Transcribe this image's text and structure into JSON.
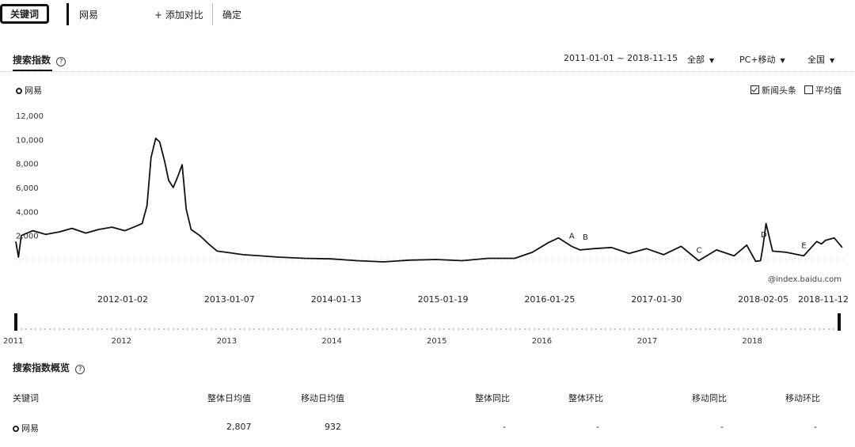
{
  "topbar": {
    "keyword_button": "关键词",
    "keyword": "网易",
    "add_compare": "+ 添加对比",
    "confirm": "确定"
  },
  "search_index": {
    "title": "搜索指数",
    "help_icon": "help-circle-icon",
    "date_range": "2011-01-01 ~ 2018-11-15",
    "scope": "全部",
    "device": "PC+移动",
    "region": "全国",
    "legend_name": "网易",
    "news_headlines_label": "新闻头条",
    "news_headlines_checked": true,
    "average_label": "平均值",
    "average_checked": false,
    "watermark": "@index.baidu.com"
  },
  "chart_data": {
    "type": "line",
    "title": "",
    "xlabel": "",
    "ylabel": "",
    "ylim": [
      0,
      12000
    ],
    "y_ticks": [
      "12,000",
      "10,000",
      "8,000",
      "6,000",
      "4,000",
      "2,000"
    ],
    "x_ticks": [
      "2012-01-02",
      "2013-01-07",
      "2014-01-13",
      "2015-01-19",
      "2016-01-25",
      "2017-01-30",
      "2018-02-05",
      "2018-11-12"
    ],
    "series": [
      {
        "name": "网易",
        "x": [
          "2011-01-01",
          "2011-01-10",
          "2011-01-20",
          "2011-03-01",
          "2011-04-15",
          "2011-06-01",
          "2011-07-15",
          "2011-09-01",
          "2011-10-15",
          "2011-12-01",
          "2012-01-15",
          "2012-02-15",
          "2012-03-15",
          "2012-04-01",
          "2012-04-15",
          "2012-05-01",
          "2012-05-15",
          "2012-06-01",
          "2012-06-15",
          "2012-07-01",
          "2012-07-15",
          "2012-08-01",
          "2012-08-15",
          "2012-09-01",
          "2012-10-01",
          "2012-11-01",
          "2012-12-01",
          "2013-01-01",
          "2013-03-01",
          "2013-05-01",
          "2013-07-01",
          "2013-10-01",
          "2014-01-01",
          "2014-04-01",
          "2014-07-01",
          "2014-10-01",
          "2015-01-01",
          "2015-04-01",
          "2015-07-01",
          "2015-10-01",
          "2015-12-01",
          "2016-01-25",
          "2016-03-01",
          "2016-04-15",
          "2016-05-15",
          "2016-07-01",
          "2016-09-01",
          "2016-11-01",
          "2017-01-01",
          "2017-03-01",
          "2017-05-01",
          "2017-07-01",
          "2017-09-01",
          "2017-11-01",
          "2017-12-15",
          "2018-01-15",
          "2018-02-01",
          "2018-02-10",
          "2018-02-20",
          "2018-03-15",
          "2018-05-01",
          "2018-07-01",
          "2018-08-15",
          "2018-09-01",
          "2018-09-15",
          "2018-10-15",
          "2018-11-12"
        ],
        "values": [
          1500,
          200,
          2000,
          2400,
          2100,
          2300,
          2600,
          2200,
          2500,
          2700,
          2400,
          2700,
          3000,
          4500,
          8500,
          10100,
          9800,
          8200,
          6600,
          6000,
          6800,
          7900,
          4200,
          2500,
          2000,
          1300,
          700,
          600,
          400,
          300,
          200,
          100,
          50,
          -100,
          -200,
          -50,
          0,
          -100,
          100,
          100,
          600,
          1400,
          1800,
          1100,
          800,
          900,
          1000,
          500,
          900,
          400,
          1100,
          -100,
          800,
          300,
          1200,
          -150,
          -100,
          1200,
          3000,
          700,
          600,
          300,
          1500,
          1300,
          1600,
          1800,
          1000
        ]
      }
    ],
    "annotations": [
      {
        "label": "A",
        "x": "2016-04-15"
      },
      {
        "label": "B",
        "x": "2016-06-01"
      },
      {
        "label": "C",
        "x": "2017-07-01"
      },
      {
        "label": "D",
        "x": "2018-02-10"
      },
      {
        "label": "E",
        "x": "2018-07-01"
      }
    ],
    "legend": "top-left",
    "grid": false
  },
  "overview_axis": {
    "years": [
      "2011",
      "2012",
      "2013",
      "2014",
      "2015",
      "2016",
      "2017",
      "2018"
    ]
  },
  "overview": {
    "title": "搜索指数概览",
    "headers": [
      "关键词",
      "整体日均值",
      "移动日均值",
      "整体同比",
      "整体环比",
      "移动同比",
      "移动环比"
    ],
    "rows": [
      {
        "keyword": "网易",
        "overall_daily_avg": "2,807",
        "mobile_daily_avg": "932",
        "overall_yoy": "-",
        "overall_mom": "-",
        "mobile_yoy": "-",
        "mobile_mom": "-"
      }
    ]
  }
}
